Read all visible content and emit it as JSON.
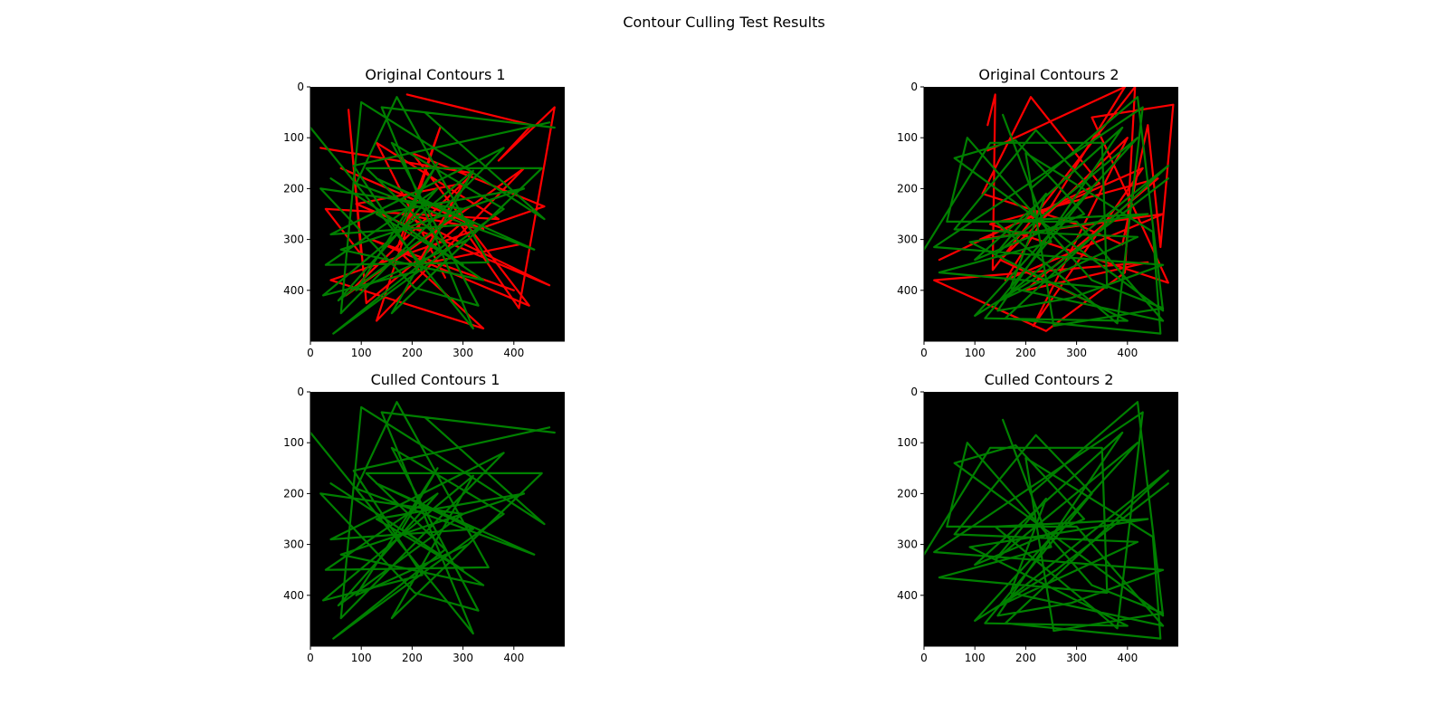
{
  "figure": {
    "suptitle": "Contour Culling Test Results",
    "background": "#ffffff",
    "axes_background": "#000000",
    "colors": {
      "culled": "#ff0000",
      "kept": "#008000"
    }
  },
  "chart_data": [
    {
      "type": "line",
      "title": "Original Contours 1",
      "xlim": [
        0,
        500
      ],
      "ylim": [
        500,
        0
      ],
      "xticks": [
        0,
        100,
        200,
        300,
        400
      ],
      "yticks": [
        0,
        100,
        200,
        300,
        400
      ],
      "grid": false,
      "series": [
        {
          "color": "#ff0000",
          "points": [
            [
              190,
              15
            ],
            [
              435,
              75
            ],
            [
              370,
              145
            ],
            [
              480,
              40
            ],
            [
              410,
              435
            ],
            [
              295,
              270
            ],
            [
              110,
              425
            ],
            [
              75,
              45
            ],
            [
              100,
              330
            ],
            [
              30,
              240
            ],
            [
              370,
              260
            ],
            [
              130,
              110
            ],
            [
              265,
              375
            ]
          ]
        },
        {
          "color": "#ff0000",
          "points": [
            [
              20,
              120
            ],
            [
              320,
              170
            ],
            [
              70,
              410
            ],
            [
              420,
              160
            ],
            [
              130,
              460
            ],
            [
              255,
              80
            ],
            [
              170,
              320
            ],
            [
              340,
              475
            ],
            [
              40,
              380
            ],
            [
              460,
              235
            ],
            [
              200,
              130
            ],
            [
              430,
              430
            ],
            [
              120,
              300
            ],
            [
              400,
              400
            ]
          ]
        },
        {
          "color": "#ff0000",
          "points": [
            [
              60,
              160
            ],
            [
              340,
              280
            ],
            [
              180,
              250
            ],
            [
              470,
              390
            ],
            [
              90,
              230
            ],
            [
              300,
              190
            ],
            [
              210,
              350
            ],
            [
              410,
              310
            ]
          ]
        },
        {
          "color": "#008000",
          "points": [
            [
              0,
              80
            ],
            [
              320,
              475
            ],
            [
              140,
              40
            ],
            [
              480,
              80
            ],
            [
              225,
              50
            ],
            [
              460,
              260
            ],
            [
              290,
              150
            ],
            [
              100,
              30
            ],
            [
              60,
              445
            ],
            [
              380,
              120
            ],
            [
              40,
              290
            ],
            [
              320,
              270
            ],
            [
              130,
              180
            ],
            [
              440,
              320
            ],
            [
              90,
              190
            ],
            [
              170,
              20
            ],
            [
              350,
              345
            ],
            [
              30,
              350
            ],
            [
              250,
              200
            ],
            [
              55,
              420
            ],
            [
              300,
              240
            ],
            [
              20,
              200
            ],
            [
              205,
              395
            ],
            [
              330,
              430
            ],
            [
              160,
              110
            ],
            [
              380,
              240
            ],
            [
              45,
              485
            ],
            [
              265,
              310
            ],
            [
              110,
              160
            ],
            [
              455,
              160
            ],
            [
              160,
              445
            ],
            [
              320,
              165
            ],
            [
              25,
              410
            ],
            [
              220,
              360
            ],
            [
              85,
              155
            ],
            [
              470,
              70
            ]
          ]
        },
        {
          "color": "#008000",
          "points": [
            [
              40,
              180
            ],
            [
              300,
              350
            ],
            [
              130,
              250
            ],
            [
              420,
              200
            ],
            [
              60,
              320
            ],
            [
              340,
              380
            ],
            [
              180,
              270
            ],
            [
              250,
              150
            ],
            [
              90,
              400
            ],
            [
              310,
              300
            ]
          ]
        }
      ]
    },
    {
      "type": "line",
      "title": "Original Contours 2",
      "xlim": [
        0,
        500
      ],
      "ylim": [
        500,
        0
      ],
      "xticks": [
        0,
        100,
        200,
        300,
        400
      ],
      "yticks": [
        0,
        100,
        200,
        300,
        400
      ],
      "grid": false,
      "series": [
        {
          "color": "#ff0000",
          "points": [
            [
              125,
              75
            ],
            [
              140,
              15
            ],
            [
              135,
              360
            ],
            [
              415,
              0
            ],
            [
              395,
              365
            ],
            [
              240,
              480
            ],
            [
              20,
              380
            ],
            [
              440,
              345
            ],
            [
              200,
              400
            ],
            [
              460,
              180
            ],
            [
              130,
              270
            ],
            [
              480,
              385
            ],
            [
              330,
              60
            ],
            [
              490,
              35
            ],
            [
              465,
              315
            ],
            [
              440,
              75
            ],
            [
              390,
              310
            ],
            [
              300,
              270
            ],
            [
              115,
              210
            ],
            [
              210,
              20
            ],
            [
              345,
              190
            ],
            [
              30,
              340
            ]
          ]
        },
        {
          "color": "#ff0000",
          "points": [
            [
              125,
              125
            ],
            [
              395,
              0
            ],
            [
              160,
              380
            ],
            [
              470,
              250
            ],
            [
              110,
              300
            ],
            [
              430,
              160
            ],
            [
              215,
              470
            ],
            [
              400,
              100
            ],
            [
              150,
              340
            ],
            [
              330,
              425
            ]
          ]
        },
        {
          "color": "#008000",
          "points": [
            [
              0,
              320
            ],
            [
              130,
              110
            ],
            [
              350,
              110
            ],
            [
              360,
              395
            ],
            [
              30,
              365
            ],
            [
              250,
              305
            ],
            [
              155,
              55
            ],
            [
              210,
              200
            ],
            [
              420,
              20
            ],
            [
              470,
              440
            ],
            [
              60,
              140
            ],
            [
              180,
              105
            ],
            [
              315,
              250
            ],
            [
              100,
              340
            ],
            [
              390,
              80
            ],
            [
              145,
              440
            ],
            [
              290,
              415
            ],
            [
              470,
              350
            ],
            [
              20,
              315
            ],
            [
              430,
              40
            ],
            [
              380,
              465
            ],
            [
              140,
              265
            ],
            [
              440,
              250
            ],
            [
              90,
              305
            ],
            [
              400,
              460
            ],
            [
              120,
              455
            ],
            [
              330,
              200
            ],
            [
              220,
              85
            ],
            [
              60,
              280
            ],
            [
              420,
              295
            ],
            [
              150,
              420
            ],
            [
              480,
              155
            ],
            [
              160,
              455
            ],
            [
              465,
              485
            ],
            [
              450,
              285
            ],
            [
              200,
              130
            ],
            [
              255,
              470
            ],
            [
              470,
              435
            ],
            [
              330,
              380
            ],
            [
              85,
              100
            ],
            [
              45,
              265
            ],
            [
              300,
              265
            ],
            [
              470,
              460
            ],
            [
              170,
              395
            ],
            [
              240,
              210
            ],
            [
              140,
              330
            ],
            [
              420,
              100
            ],
            [
              100,
              450
            ],
            [
              260,
              350
            ],
            [
              480,
              180
            ]
          ]
        }
      ]
    },
    {
      "type": "line",
      "title": "Culled Contours 1",
      "xlim": [
        0,
        500
      ],
      "ylim": [
        500,
        0
      ],
      "xticks": [
        0,
        100,
        200,
        300,
        400
      ],
      "yticks": [
        0,
        100,
        200,
        300,
        400
      ],
      "grid": false,
      "series": [
        {
          "color": "#008000",
          "points": [
            [
              0,
              80
            ],
            [
              320,
              475
            ],
            [
              140,
              40
            ],
            [
              480,
              80
            ],
            [
              225,
              50
            ],
            [
              460,
              260
            ],
            [
              290,
              150
            ],
            [
              100,
              30
            ],
            [
              60,
              445
            ],
            [
              380,
              120
            ],
            [
              40,
              290
            ],
            [
              320,
              270
            ],
            [
              130,
              180
            ],
            [
              440,
              320
            ],
            [
              90,
              190
            ],
            [
              170,
              20
            ],
            [
              350,
              345
            ],
            [
              30,
              350
            ],
            [
              250,
              200
            ],
            [
              55,
              420
            ],
            [
              300,
              240
            ],
            [
              20,
              200
            ],
            [
              205,
              395
            ],
            [
              330,
              430
            ],
            [
              160,
              110
            ],
            [
              380,
              240
            ],
            [
              45,
              485
            ],
            [
              265,
              310
            ],
            [
              110,
              160
            ],
            [
              455,
              160
            ],
            [
              160,
              445
            ],
            [
              320,
              165
            ],
            [
              25,
              410
            ],
            [
              220,
              360
            ],
            [
              85,
              155
            ],
            [
              470,
              70
            ]
          ]
        },
        {
          "color": "#008000",
          "points": [
            [
              40,
              180
            ],
            [
              300,
              350
            ],
            [
              130,
              250
            ],
            [
              420,
              200
            ],
            [
              60,
              320
            ],
            [
              340,
              380
            ],
            [
              180,
              270
            ],
            [
              250,
              150
            ],
            [
              90,
              400
            ],
            [
              310,
              300
            ]
          ]
        }
      ]
    },
    {
      "type": "line",
      "title": "Culled Contours 2",
      "xlim": [
        0,
        500
      ],
      "ylim": [
        500,
        0
      ],
      "xticks": [
        0,
        100,
        200,
        300,
        400
      ],
      "yticks": [
        0,
        100,
        200,
        300,
        400
      ],
      "grid": false,
      "series": [
        {
          "color": "#008000",
          "points": [
            [
              0,
              320
            ],
            [
              130,
              110
            ],
            [
              350,
              110
            ],
            [
              360,
              395
            ],
            [
              30,
              365
            ],
            [
              250,
              305
            ],
            [
              155,
              55
            ],
            [
              210,
              200
            ],
            [
              420,
              20
            ],
            [
              470,
              440
            ],
            [
              60,
              140
            ],
            [
              180,
              105
            ],
            [
              315,
              250
            ],
            [
              100,
              340
            ],
            [
              390,
              80
            ],
            [
              145,
              440
            ],
            [
              290,
              415
            ],
            [
              470,
              350
            ],
            [
              20,
              315
            ],
            [
              430,
              40
            ],
            [
              380,
              465
            ],
            [
              140,
              265
            ],
            [
              440,
              250
            ],
            [
              90,
              305
            ],
            [
              400,
              460
            ],
            [
              120,
              455
            ],
            [
              330,
              200
            ],
            [
              220,
              85
            ],
            [
              60,
              280
            ],
            [
              420,
              295
            ],
            [
              150,
              420
            ],
            [
              480,
              155
            ],
            [
              160,
              455
            ],
            [
              465,
              485
            ],
            [
              450,
              285
            ],
            [
              200,
              130
            ],
            [
              255,
              470
            ],
            [
              470,
              435
            ],
            [
              330,
              380
            ],
            [
              85,
              100
            ],
            [
              45,
              265
            ],
            [
              300,
              265
            ],
            [
              470,
              460
            ],
            [
              170,
              395
            ],
            [
              240,
              210
            ],
            [
              140,
              330
            ],
            [
              420,
              100
            ],
            [
              100,
              450
            ],
            [
              260,
              350
            ],
            [
              480,
              180
            ]
          ]
        }
      ]
    }
  ]
}
